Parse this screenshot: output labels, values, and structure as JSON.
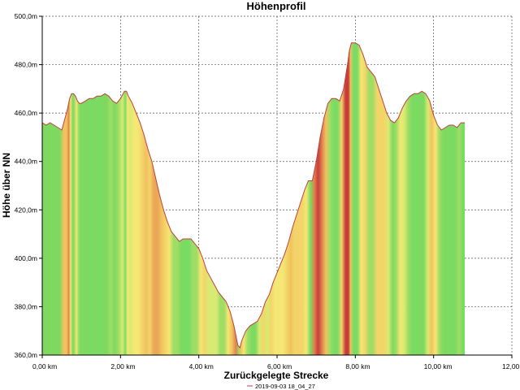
{
  "chart_data": {
    "type": "area",
    "title": "Höhenprofil",
    "xlabel": "Zurückgelegte Strecke",
    "ylabel": "Höhe über NN",
    "xlim": [
      0,
      12
    ],
    "ylim": [
      360,
      500
    ],
    "x_ticks": [
      {
        "value": 0,
        "label": "0,00 km"
      },
      {
        "value": 2,
        "label": "2,00 km"
      },
      {
        "value": 4,
        "label": "4,00 km"
      },
      {
        "value": 6,
        "label": "6,00 km"
      },
      {
        "value": 8,
        "label": "8,00 km"
      },
      {
        "value": 10,
        "label": "10,00 km"
      },
      {
        "value": 12,
        "label": "12,00 km"
      }
    ],
    "y_ticks": [
      {
        "value": 360,
        "label": "360,0m"
      },
      {
        "value": 380,
        "label": "380,0m"
      },
      {
        "value": 400,
        "label": "400,0m"
      },
      {
        "value": 420,
        "label": "420,0m"
      },
      {
        "value": 440,
        "label": "440,0m"
      },
      {
        "value": 460,
        "label": "460,0m"
      },
      {
        "value": 480,
        "label": "480,0m"
      },
      {
        "value": 500,
        "label": "500,0m"
      }
    ],
    "grid": true,
    "legend": "bottom-center",
    "series": [
      {
        "name": "2019-09-03 18_04_27",
        "color": "#c04040",
        "x": [
          0.0,
          0.1,
          0.2,
          0.3,
          0.4,
          0.5,
          0.6,
          0.65,
          0.7,
          0.75,
          0.8,
          0.85,
          0.9,
          0.95,
          1.0,
          1.1,
          1.2,
          1.3,
          1.4,
          1.5,
          1.6,
          1.7,
          1.8,
          1.9,
          2.0,
          2.1,
          2.15,
          2.2,
          2.3,
          2.4,
          2.5,
          2.6,
          2.7,
          2.8,
          2.9,
          3.0,
          3.1,
          3.2,
          3.3,
          3.4,
          3.5,
          3.6,
          3.7,
          3.8,
          3.9,
          4.0,
          4.1,
          4.2,
          4.3,
          4.4,
          4.5,
          4.6,
          4.7,
          4.8,
          4.9,
          5.0,
          5.05,
          5.1,
          5.2,
          5.3,
          5.4,
          5.5,
          5.6,
          5.7,
          5.8,
          5.9,
          6.0,
          6.1,
          6.2,
          6.3,
          6.4,
          6.5,
          6.6,
          6.7,
          6.8,
          6.9,
          7.0,
          7.1,
          7.2,
          7.3,
          7.4,
          7.5,
          7.6,
          7.7,
          7.8,
          7.85,
          7.9,
          8.0,
          8.1,
          8.2,
          8.3,
          8.4,
          8.5,
          8.6,
          8.7,
          8.8,
          8.9,
          9.0,
          9.1,
          9.2,
          9.3,
          9.4,
          9.5,
          9.6,
          9.7,
          9.8,
          9.9,
          10.0,
          10.1,
          10.2,
          10.3,
          10.4,
          10.5,
          10.6,
          10.7,
          10.8
        ],
        "values": [
          456,
          455,
          456,
          455,
          454,
          453,
          459,
          462,
          466,
          468,
          468,
          467,
          465,
          464,
          464,
          465,
          466,
          466,
          467,
          467,
          468,
          467,
          465,
          464,
          466,
          469,
          469,
          467,
          464,
          460,
          456,
          451,
          445,
          440,
          433,
          426,
          420,
          415,
          411,
          409,
          407,
          408,
          408,
          408,
          406,
          404,
          400,
          395,
          392,
          389,
          386,
          384,
          382,
          378,
          372,
          364,
          363,
          366,
          370,
          372,
          373,
          374,
          377,
          382,
          385,
          390,
          394,
          398,
          402,
          407,
          413,
          418,
          423,
          428,
          432,
          432,
          440,
          450,
          458,
          464,
          466,
          466,
          465,
          470,
          480,
          486,
          489,
          489,
          488,
          484,
          479,
          477,
          475,
          470,
          465,
          460,
          457,
          456,
          458,
          462,
          465,
          467,
          468,
          468,
          469,
          468,
          465,
          459,
          455,
          453,
          454,
          455,
          455,
          454,
          456,
          456
        ]
      }
    ]
  }
}
